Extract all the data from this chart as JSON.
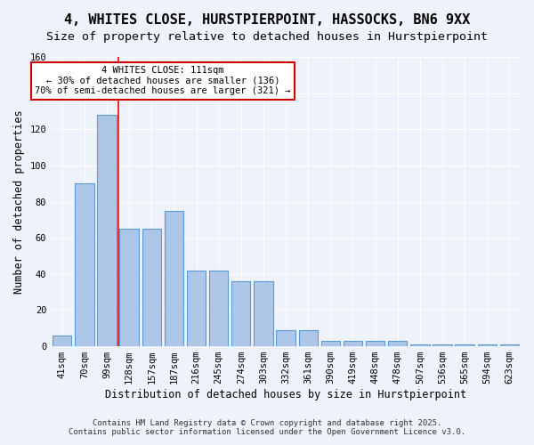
{
  "title1": "4, WHITES CLOSE, HURSTPIERPOINT, HASSOCKS, BN6 9XX",
  "title2": "Size of property relative to detached houses in Hurstpierpoint",
  "xlabel": "Distribution of detached houses by size in Hurstpierpoint",
  "ylabel": "Number of detached properties",
  "categories": [
    "41sqm",
    "70sqm",
    "99sqm",
    "128sqm",
    "157sqm",
    "187sqm",
    "216sqm",
    "245sqm",
    "274sqm",
    "303sqm",
    "332sqm",
    "361sqm",
    "390sqm",
    "419sqm",
    "448sqm",
    "478sqm",
    "507sqm",
    "536sqm",
    "565sqm",
    "594sqm",
    "623sqm"
  ],
  "values": [
    6,
    90,
    128,
    65,
    65,
    75,
    42,
    42,
    36,
    36,
    9,
    9,
    3,
    3,
    3,
    3,
    1,
    1,
    1,
    1,
    1
  ],
  "bar_color": "#aec6e8",
  "bar_edge_color": "#5b9bd5",
  "red_line_x": 2.5,
  "annotation_text": "4 WHITES CLOSE: 111sqm\n← 30% of detached houses are smaller (136)\n70% of semi-detached houses are larger (321) →",
  "annotation_box_color": "#ffffff",
  "annotation_box_edge": "#cc0000",
  "ylim": [
    0,
    160
  ],
  "yticks": [
    0,
    20,
    40,
    60,
    80,
    100,
    120,
    140,
    160
  ],
  "footer1": "Contains HM Land Registry data © Crown copyright and database right 2025.",
  "footer2": "Contains public sector information licensed under the Open Government Licence v3.0.",
  "bg_color": "#eef2fb",
  "grid_color": "#ffffff",
  "title_fontsize": 11,
  "subtitle_fontsize": 9.5,
  "tick_fontsize": 7.5
}
